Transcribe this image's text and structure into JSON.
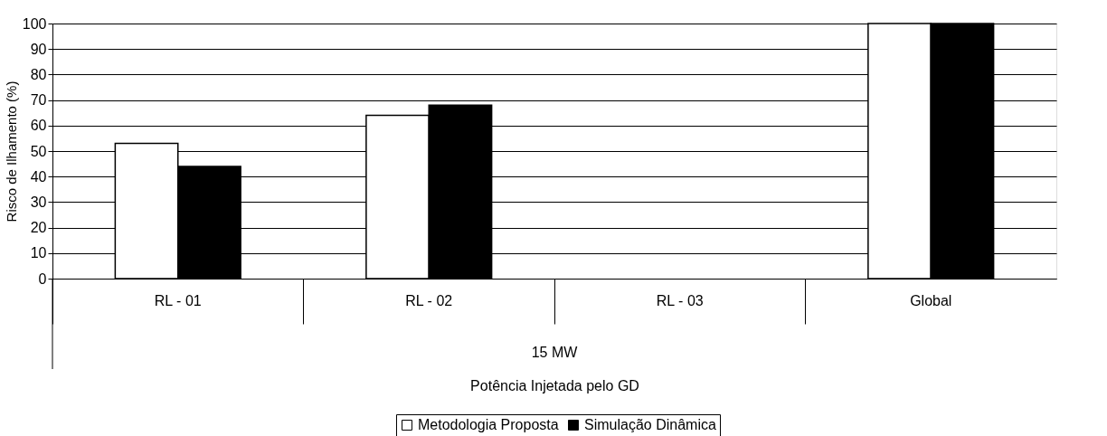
{
  "chart_data": {
    "type": "bar",
    "categories": [
      "RL - 01",
      "RL - 02",
      "RL - 03",
      "Global"
    ],
    "series": [
      {
        "name": "Metodologia Proposta",
        "color": "#ffffff",
        "values": [
          53,
          64,
          0,
          100
        ]
      },
      {
        "name": "Simulação Dinâmica",
        "color": "#000000",
        "values": [
          44,
          68,
          0,
          100
        ]
      }
    ],
    "xlabel": "Potência Injetada pelo GD",
    "ylabel": "Risco de Ilhamento (%)",
    "annotations": [
      "15 MW"
    ],
    "ylim": [
      0,
      100
    ],
    "yticks": [
      0,
      10,
      20,
      30,
      40,
      50,
      60,
      70,
      80,
      90,
      100
    ],
    "grid": "y",
    "legend": "bottom"
  }
}
